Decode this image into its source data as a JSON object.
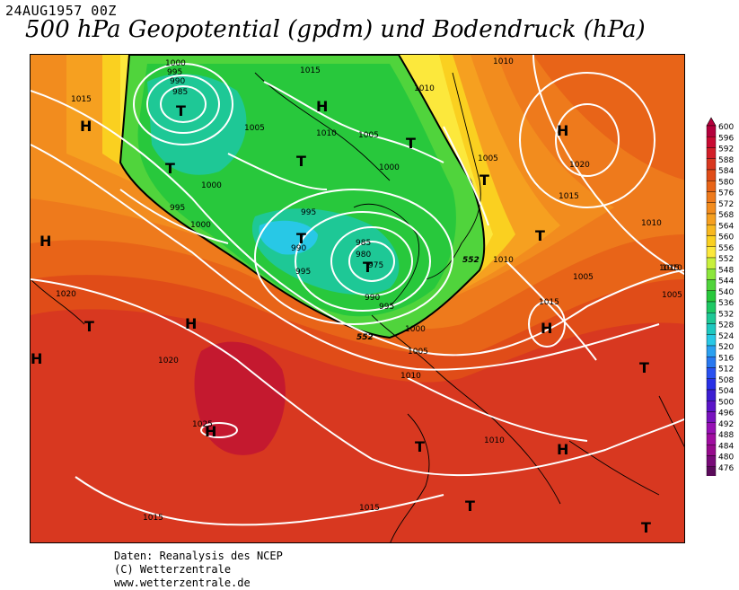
{
  "header": {
    "date": "24AUG1957 00Z",
    "title": "500 hPa Geopotential (gpdm) und Bodendruck (hPa)"
  },
  "legend": {
    "ticks": [
      "600",
      "596",
      "592",
      "588",
      "584",
      "580",
      "576",
      "572",
      "568",
      "564",
      "560",
      "556",
      "552",
      "548",
      "544",
      "540",
      "536",
      "532",
      "528",
      "524",
      "520",
      "516",
      "512",
      "508",
      "504",
      "500",
      "496",
      "492",
      "488",
      "484",
      "480",
      "476"
    ],
    "colors": [
      "#b4003c",
      "#c80a32",
      "#d21e28",
      "#d83820",
      "#e04c18",
      "#e86418",
      "#ee7a1c",
      "#f28c1e",
      "#f6a020",
      "#f8b820",
      "#fad020",
      "#fce83c",
      "#c8f03c",
      "#8ce63c",
      "#50d43c",
      "#28c83c",
      "#1ec864",
      "#1ec896",
      "#1ec8c0",
      "#28c8e6",
      "#2aa0f0",
      "#2878f0",
      "#2850f0",
      "#2830e6",
      "#3c1ed2",
      "#5a14c8",
      "#7812be",
      "#9610b4",
      "#a00ca0",
      "#960a8c",
      "#780a78",
      "#5a0a5a"
    ]
  },
  "map": {
    "isobar_labels": [
      "1000",
      "995",
      "990",
      "985",
      "1015",
      "1015",
      "1010",
      "1005",
      "1010",
      "1005",
      "1000",
      "1000",
      "995",
      "1000",
      "995",
      "990",
      "995",
      "985",
      "980",
      "975",
      "990",
      "995",
      "1000",
      "1005",
      "1010",
      "1005",
      "1010",
      "1015",
      "1020",
      "1015",
      "1010",
      "1005",
      "1010",
      "1015",
      "1020",
      "1025",
      "1010",
      "1015",
      "1020",
      "1005",
      "1010",
      "1015"
    ],
    "contour_labels": [
      "552",
      "552"
    ],
    "pressure_centers": [
      "T",
      "T",
      "H",
      "T",
      "T",
      "T",
      "H",
      "T",
      "T",
      "H",
      "T",
      "H",
      "H",
      "T",
      "H",
      "T",
      "T",
      "H",
      "T",
      "T",
      "H",
      "H"
    ]
  },
  "credits": {
    "line1": "Daten: Reanalysis des NCEP",
    "line2": "(C) Wetterzentrale",
    "line3": "www.wetterzentrale.de"
  }
}
